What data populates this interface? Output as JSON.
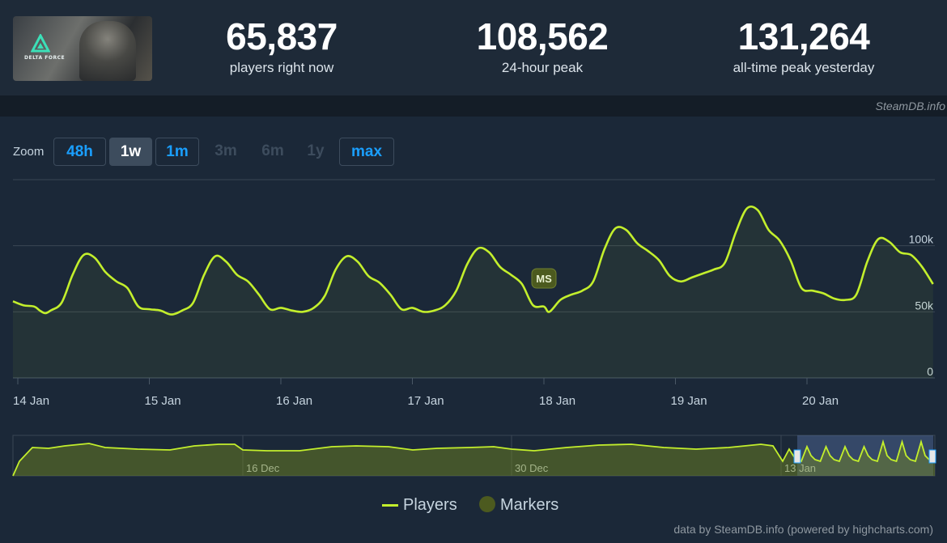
{
  "header": {
    "game_logo_text": "DELTA FORCE",
    "stats": [
      {
        "value": "65,837",
        "label": "players right now"
      },
      {
        "value": "108,562",
        "label": "24-hour peak"
      },
      {
        "value": "131,264",
        "label": "all-time peak yesterday"
      }
    ]
  },
  "source_label": "SteamDB.info",
  "zoom": {
    "label": "Zoom",
    "buttons": [
      {
        "label": "48h",
        "state": "enabled"
      },
      {
        "label": "1w",
        "state": "active"
      },
      {
        "label": "1m",
        "state": "enabled"
      },
      {
        "label": "3m",
        "state": "disabled"
      },
      {
        "label": "6m",
        "state": "disabled"
      },
      {
        "label": "1y",
        "state": "disabled"
      },
      {
        "label": "max",
        "state": "enabled"
      }
    ]
  },
  "colors": {
    "line": "#c3ef2c",
    "accent": "#1a9fff",
    "marker": "#4c5a1f"
  },
  "chart_data": {
    "type": "line",
    "title": "",
    "xlabel": "",
    "ylabel": "",
    "x_ticks": [
      "14 Jan",
      "15 Jan",
      "16 Jan",
      "17 Jan",
      "18 Jan",
      "19 Jan",
      "20 Jan"
    ],
    "y_ticks": [
      "0",
      "50k",
      "100k"
    ],
    "ylim": [
      0,
      150000
    ],
    "grid": true,
    "series": [
      {
        "name": "Players",
        "points": [
          [
            "14 Jan 00:00",
            58000
          ],
          [
            "14 Jan 01:00",
            55000
          ],
          [
            "14 Jan 03:00",
            54000
          ],
          [
            "14 Jan 04:00",
            51000
          ],
          [
            "14 Jan 05:00",
            49000
          ],
          [
            "14 Jan 06:00",
            51000
          ],
          [
            "14 Jan 08:00",
            57000
          ],
          [
            "14 Jan 10:00",
            78000
          ],
          [
            "14 Jan 12:00",
            93000
          ],
          [
            "14 Jan 14:00",
            91000
          ],
          [
            "14 Jan 16:00",
            80000
          ],
          [
            "14 Jan 18:00",
            73000
          ],
          [
            "14 Jan 20:00",
            68000
          ],
          [
            "14 Jan 22:00",
            54000
          ],
          [
            "15 Jan 00:00",
            52000
          ],
          [
            "15 Jan 02:00",
            51000
          ],
          [
            "15 Jan 04:00",
            48000
          ],
          [
            "15 Jan 06:00",
            51000
          ],
          [
            "15 Jan 08:00",
            57000
          ],
          [
            "15 Jan 10:00",
            78000
          ],
          [
            "15 Jan 12:00",
            92000
          ],
          [
            "15 Jan 14:00",
            88000
          ],
          [
            "15 Jan 16:00",
            78000
          ],
          [
            "15 Jan 18:00",
            73000
          ],
          [
            "15 Jan 20:00",
            63000
          ],
          [
            "15 Jan 22:00",
            52000
          ],
          [
            "16 Jan 00:00",
            53000
          ],
          [
            "16 Jan 02:00",
            51000
          ],
          [
            "16 Jan 04:00",
            50000
          ],
          [
            "16 Jan 06:00",
            53000
          ],
          [
            "16 Jan 08:00",
            62000
          ],
          [
            "16 Jan 10:00",
            82000
          ],
          [
            "16 Jan 12:00",
            92000
          ],
          [
            "16 Jan 14:00",
            88000
          ],
          [
            "16 Jan 16:00",
            77000
          ],
          [
            "16 Jan 18:00",
            72000
          ],
          [
            "16 Jan 20:00",
            63000
          ],
          [
            "16 Jan 22:00",
            52000
          ],
          [
            "17 Jan 00:00",
            53000
          ],
          [
            "17 Jan 02:00",
            50000
          ],
          [
            "17 Jan 04:00",
            51000
          ],
          [
            "17 Jan 06:00",
            55000
          ],
          [
            "17 Jan 08:00",
            66000
          ],
          [
            "17 Jan 10:00",
            86000
          ],
          [
            "17 Jan 12:00",
            98000
          ],
          [
            "17 Jan 14:00",
            95000
          ],
          [
            "17 Jan 16:00",
            84000
          ],
          [
            "17 Jan 18:00",
            78000
          ],
          [
            "17 Jan 20:00",
            71000
          ],
          [
            "17 Jan 22:00",
            55000
          ],
          [
            "18 Jan 00:00",
            54000
          ],
          [
            "18 Jan 01:00",
            50000
          ],
          [
            "18 Jan 03:00",
            59000
          ],
          [
            "18 Jan 05:00",
            63000
          ],
          [
            "18 Jan 07:00",
            66000
          ],
          [
            "18 Jan 09:00",
            73000
          ],
          [
            "18 Jan 11:00",
            97000
          ],
          [
            "18 Jan 13:00",
            113000
          ],
          [
            "18 Jan 15:00",
            112000
          ],
          [
            "18 Jan 17:00",
            102000
          ],
          [
            "18 Jan 19:00",
            96000
          ],
          [
            "18 Jan 21:00",
            89000
          ],
          [
            "18 Jan 23:00",
            77000
          ],
          [
            "19 Jan 01:00",
            73000
          ],
          [
            "19 Jan 03:00",
            76000
          ],
          [
            "19 Jan 05:00",
            79000
          ],
          [
            "19 Jan 07:00",
            82000
          ],
          [
            "19 Jan 09:00",
            87000
          ],
          [
            "19 Jan 11:00",
            110000
          ],
          [
            "19 Jan 13:00",
            128000
          ],
          [
            "19 Jan 15:00",
            127000
          ],
          [
            "19 Jan 17:00",
            112000
          ],
          [
            "19 Jan 19:00",
            104000
          ],
          [
            "19 Jan 21:00",
            89000
          ],
          [
            "19 Jan 23:00",
            68000
          ],
          [
            "20 Jan 01:00",
            66000
          ],
          [
            "20 Jan 03:00",
            64000
          ],
          [
            "20 Jan 05:00",
            60000
          ],
          [
            "20 Jan 07:00",
            59000
          ],
          [
            "20 Jan 09:00",
            63000
          ],
          [
            "20 Jan 11:00",
            88000
          ],
          [
            "20 Jan 13:00",
            105000
          ],
          [
            "20 Jan 15:00",
            103000
          ],
          [
            "20 Jan 17:00",
            95000
          ],
          [
            "20 Jan 19:00",
            93000
          ],
          [
            "20 Jan 21:00",
            84000
          ],
          [
            "20 Jan 23:00",
            71000
          ]
        ]
      }
    ],
    "markers": [
      {
        "label": "MS",
        "x": "18 Jan 00:00"
      }
    ],
    "navigator": {
      "x_ticks": [
        "16 Dec",
        "30 Dec",
        "13 Jan"
      ]
    },
    "legend": [
      "Players",
      "Markers"
    ],
    "legend_position": "bottom"
  },
  "footer": "data by SteamDB.info (powered by highcharts.com)"
}
